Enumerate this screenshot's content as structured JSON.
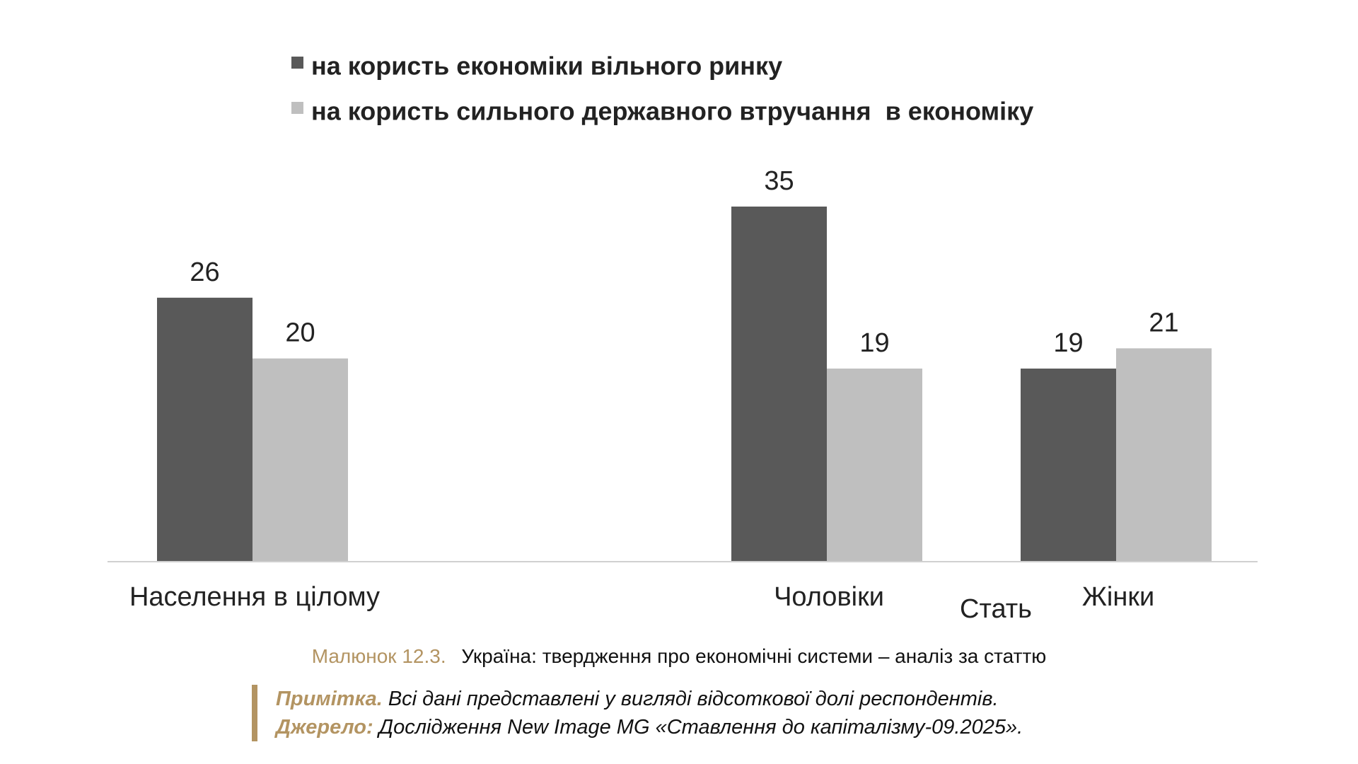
{
  "chart_data": {
    "type": "bar",
    "title": "",
    "xlabel": "Стать",
    "ylabel": "",
    "ylim": [
      0,
      35
    ],
    "grid": false,
    "legend_position": "top",
    "categories": [
      "Населення в цілому",
      "Чоловіки",
      "Жінки"
    ],
    "series": [
      {
        "name": "на користь економіки вільного ринку",
        "color": "#595959",
        "values": [
          26,
          35,
          19
        ]
      },
      {
        "name": "на користь сильного державного втручання  в економіку",
        "color": "#bfbfbf",
        "values": [
          20,
          19,
          21
        ]
      }
    ]
  },
  "caption": {
    "label": "Малюнок 12.3.",
    "title": "Україна: твердження про економічні системи – аналіз за статтю"
  },
  "notes": {
    "note_label": "Примітка.",
    "note_text": "Всі дані представлені у вигляді відсоткової долі респондентів.",
    "source_label": "Джерело:",
    "source_text": "Дослідження New Image MG «Ставлення до капіталізму-09.2025»."
  },
  "colors": {
    "accent": "#b39462",
    "axis": "#d0d0d0"
  }
}
